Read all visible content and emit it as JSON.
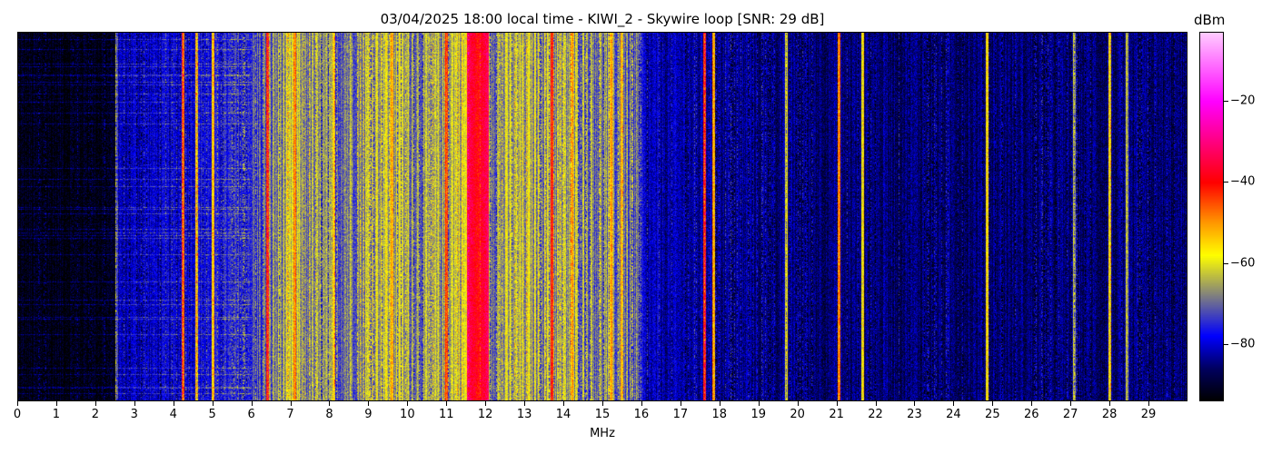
{
  "chart_data": {
    "type": "heatmap",
    "title": "03/04/2025 18:00 local time - KIWI_2 - Skywire loop [SNR: 29 dB]",
    "xlabel": "MHz",
    "ylabel": "",
    "xlim": [
      0,
      30
    ],
    "x_ticks": [
      "0",
      "1",
      "2",
      "3",
      "4",
      "5",
      "6",
      "7",
      "8",
      "9",
      "10",
      "11",
      "12",
      "13",
      "14",
      "15",
      "16",
      "17",
      "18",
      "19",
      "20",
      "21",
      "22",
      "23",
      "24",
      "25",
      "26",
      "27",
      "28",
      "29"
    ],
    "colorbar": {
      "label": "dBm",
      "range": [
        -94,
        -3
      ],
      "ticks": [
        -20,
        -40,
        -60,
        -80
      ],
      "tick_labels": [
        "−20",
        "−40",
        "−60",
        "−80"
      ],
      "colormap": [
        [
          "-94",
          "#000000"
        ],
        [
          "-86",
          "#000060"
        ],
        [
          "-78",
          "#0000ff"
        ],
        [
          "-68",
          "#808080"
        ],
        [
          "-58",
          "#ffff00"
        ],
        [
          "-50",
          "#ff9900"
        ],
        [
          "-40",
          "#ff0000"
        ],
        [
          "-20",
          "#ff00ff"
        ],
        [
          "-3",
          "#ffccff"
        ]
      ]
    },
    "background_levels_dBm": [
      [
        0,
        -93
      ],
      [
        2.5,
        -92
      ],
      [
        2.6,
        -82
      ],
      [
        4,
        -80
      ],
      [
        6,
        -74
      ],
      [
        7,
        -64
      ],
      [
        8,
        -70
      ],
      [
        9.3,
        -62
      ],
      [
        10.5,
        -68
      ],
      [
        11.4,
        -60
      ],
      [
        12.2,
        -66
      ],
      [
        13,
        -64
      ],
      [
        14.5,
        -66
      ],
      [
        15.8,
        -70
      ],
      [
        16.1,
        -82
      ],
      [
        20,
        -85
      ],
      [
        30,
        -86
      ]
    ],
    "strong_signals": [
      {
        "MHz": 2.55,
        "dBm": -75
      },
      {
        "MHz": 4.25,
        "dBm": -50
      },
      {
        "MHz": 4.6,
        "dBm": -60
      },
      {
        "MHz": 5.0,
        "dBm": -58
      },
      {
        "MHz": 6.4,
        "dBm": -45
      },
      {
        "MHz": 7.1,
        "dBm": -52
      },
      {
        "MHz": 8.1,
        "dBm": -58
      },
      {
        "MHz": 9.6,
        "dBm": -55
      },
      {
        "MHz": 11.0,
        "dBm": -48
      },
      {
        "MHz": 11.8,
        "dBm": -40
      },
      {
        "MHz": 13.7,
        "dBm": -45
      },
      {
        "MHz": 14.2,
        "dBm": -55
      },
      {
        "MHz": 15.2,
        "dBm": -55
      },
      {
        "MHz": 15.5,
        "dBm": -58
      },
      {
        "MHz": 17.6,
        "dBm": -45
      },
      {
        "MHz": 17.85,
        "dBm": -55
      },
      {
        "MHz": 19.7,
        "dBm": -65
      },
      {
        "MHz": 21.05,
        "dBm": -52
      },
      {
        "MHz": 21.65,
        "dBm": -62
      },
      {
        "MHz": 24.85,
        "dBm": -60
      },
      {
        "MHz": 27.1,
        "dBm": -70
      },
      {
        "MHz": 28.0,
        "dBm": -60
      },
      {
        "MHz": 28.45,
        "dBm": -68
      }
    ]
  }
}
